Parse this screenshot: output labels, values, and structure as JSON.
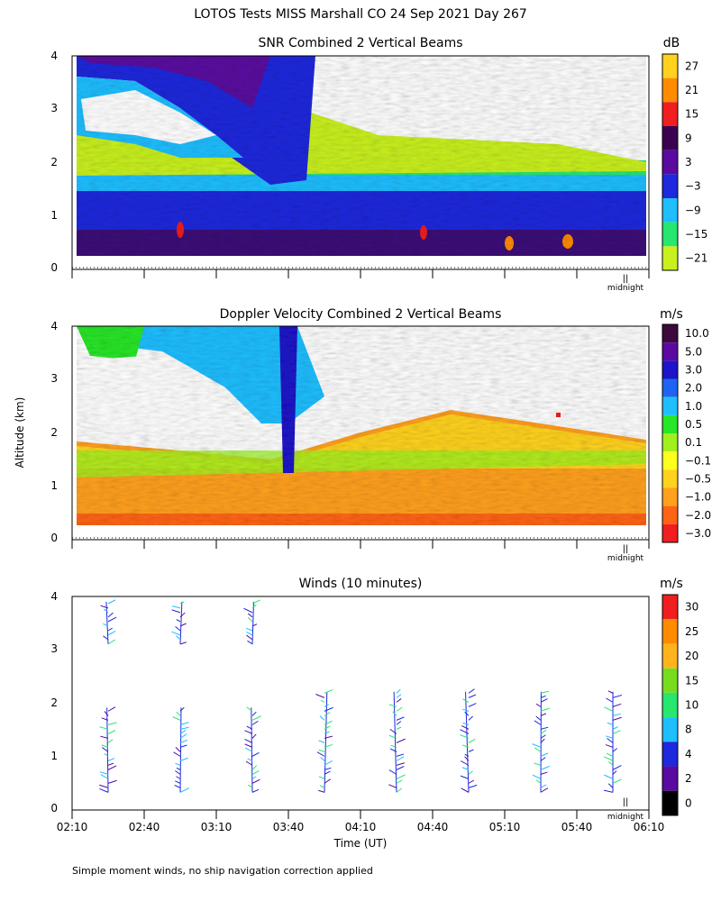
{
  "page": {
    "title": "LOTOS Tests MISS Marshall CO  24 Sep 2021 Day 267",
    "y_axis_label": "Altitude (km)",
    "x_axis_label": "Time (UT)",
    "footnote": "Simple moment winds, no ship navigation correction applied",
    "midnight_label": "midnight"
  },
  "chart_data": [
    {
      "id": "snr",
      "type": "heatmap",
      "title": "SNR Combined 2 Vertical Beams",
      "units": "dB",
      "ylim": [
        0,
        4
      ],
      "y_ticks": [
        "0",
        "1",
        "2",
        "3",
        "4"
      ],
      "colorbar_labels": [
        "27",
        "21",
        "15",
        "9",
        "3",
        "−3",
        "−9",
        "−15",
        "−21"
      ],
      "colorbar_colors": [
        "#ffd21e",
        "#ff8c00",
        "#f01e1e",
        "#3c0050",
        "#5a0aa0",
        "#1e28dc",
        "#1ebeff",
        "#28e66e",
        "#c8f01e"
      ]
    },
    {
      "id": "doppler",
      "type": "heatmap",
      "title": "Doppler Velocity Combined 2 Vertical Beams",
      "units": "m/s",
      "ylim": [
        0,
        4
      ],
      "y_ticks": [
        "0",
        "1",
        "2",
        "3",
        "4"
      ],
      "colorbar_labels": [
        "10.0",
        "5.0",
        "3.0",
        "2.0",
        "1.0",
        "0.5",
        "0.1",
        "−0.1",
        "−0.5",
        "−1.0",
        "−2.0",
        "−3.0"
      ],
      "colorbar_colors": [
        "#3c0a3c",
        "#5a0aa0",
        "#1e14c8",
        "#1e64f0",
        "#1ebeff",
        "#28e628",
        "#a0f01e",
        "#ffff1e",
        "#ffd21e",
        "#ffa01e",
        "#ff6414",
        "#f01e1e"
      ]
    },
    {
      "id": "winds",
      "type": "scatter",
      "title": "Winds (10 minutes)",
      "units": "m/s",
      "ylim": [
        0,
        4
      ],
      "y_ticks": [
        "0",
        "1",
        "2",
        "3",
        "4"
      ],
      "x_ticks": [
        "02:10",
        "02:40",
        "03:10",
        "03:40",
        "04:10",
        "04:40",
        "05:10",
        "05:40",
        "06:10"
      ],
      "colorbar_labels": [
        "30",
        "25",
        "20",
        "15",
        "10",
        "8",
        "4",
        "2",
        "0"
      ],
      "colorbar_colors": [
        "#f01e1e",
        "#ff8c00",
        "#ffb41e",
        "#78dc1e",
        "#28e66e",
        "#1ebeff",
        "#1e28dc",
        "#5a0aa0",
        "#000000"
      ],
      "profile_times_utc": [
        "02:25",
        "02:55",
        "03:25",
        "03:55",
        "04:25",
        "04:55",
        "05:25",
        "05:55"
      ]
    }
  ]
}
